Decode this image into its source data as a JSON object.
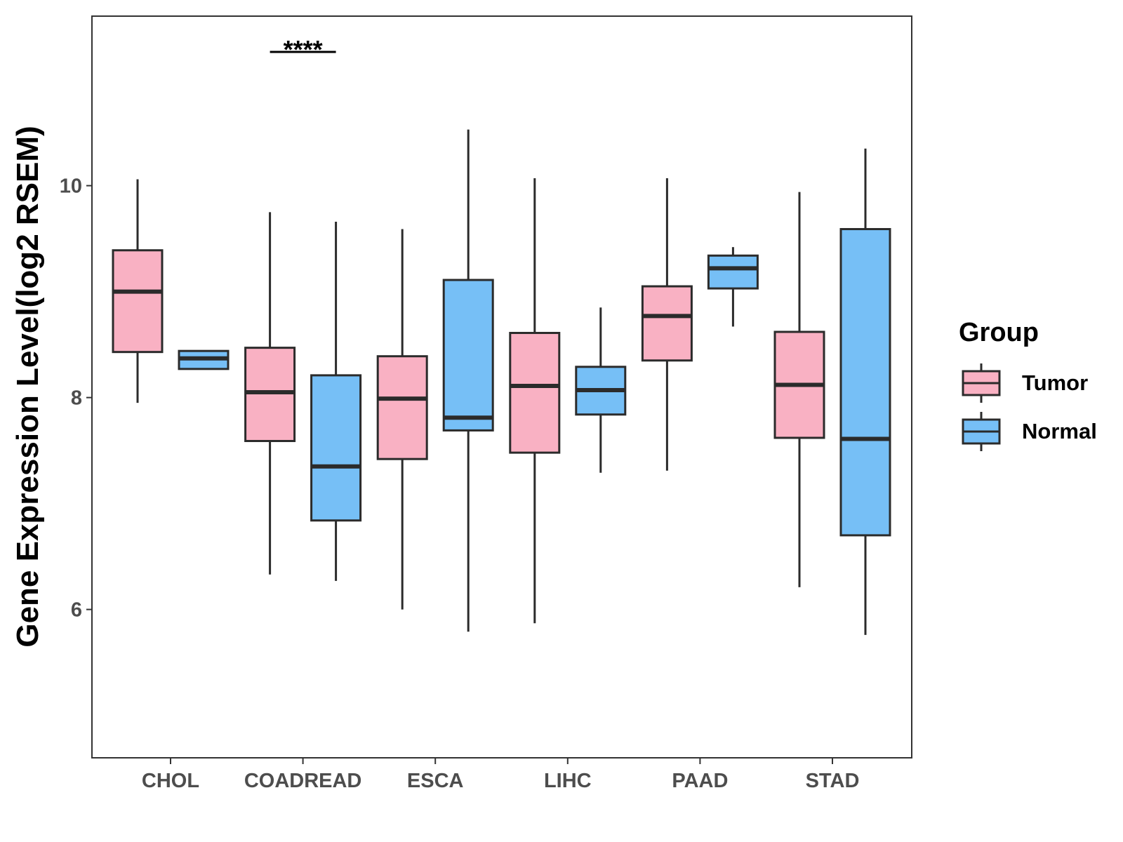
{
  "chart_data": {
    "type": "boxplot",
    "title": "",
    "xlabel": "",
    "ylabel": "Gene Expression Level(log2 RSEM)",
    "ylim": [
      4.6,
      11.6
    ],
    "yticks": [
      6,
      8,
      10
    ],
    "grid": false,
    "legend_position": "right",
    "legend": {
      "title": "Group",
      "items": [
        {
          "name": "Tumor",
          "color": "#F9B1C3"
        },
        {
          "name": "Normal",
          "color": "#76BFF6"
        }
      ]
    },
    "categories": [
      "CHOL",
      "COADREAD",
      "ESCA",
      "LIHC",
      "PAAD",
      "STAD"
    ],
    "series": [
      {
        "name": "Tumor",
        "color": "#F9B1C3",
        "boxes": [
          {
            "category": "CHOL",
            "whisker_low": 7.95,
            "q1": 8.43,
            "median": 9.0,
            "q3": 9.39,
            "whisker_high": 10.06
          },
          {
            "category": "COADREAD",
            "whisker_low": 6.33,
            "q1": 7.59,
            "median": 8.05,
            "q3": 8.47,
            "whisker_high": 9.75
          },
          {
            "category": "ESCA",
            "whisker_low": 6.0,
            "q1": 7.42,
            "median": 7.99,
            "q3": 8.39,
            "whisker_high": 9.59
          },
          {
            "category": "LIHC",
            "whisker_low": 5.87,
            "q1": 7.48,
            "median": 8.11,
            "q3": 8.61,
            "whisker_high": 10.07
          },
          {
            "category": "PAAD",
            "whisker_low": 7.31,
            "q1": 8.35,
            "median": 8.77,
            "q3": 9.05,
            "whisker_high": 10.07
          },
          {
            "category": "STAD",
            "whisker_low": 6.21,
            "q1": 7.62,
            "median": 8.12,
            "q3": 8.62,
            "whisker_high": 9.94
          }
        ]
      },
      {
        "name": "Normal",
        "color": "#76BFF6",
        "boxes": [
          {
            "category": "CHOL",
            "whisker_low": 8.27,
            "q1": 8.27,
            "median": 8.37,
            "q3": 8.44,
            "whisker_high": 8.44
          },
          {
            "category": "COADREAD",
            "whisker_low": 6.27,
            "q1": 6.84,
            "median": 7.35,
            "q3": 8.21,
            "whisker_high": 9.66
          },
          {
            "category": "ESCA",
            "whisker_low": 5.79,
            "q1": 7.69,
            "median": 7.81,
            "q3": 9.11,
            "whisker_high": 10.53
          },
          {
            "category": "LIHC",
            "whisker_low": 7.29,
            "q1": 7.84,
            "median": 8.07,
            "q3": 8.29,
            "whisker_high": 8.85
          },
          {
            "category": "PAAD",
            "whisker_low": 8.67,
            "q1": 9.03,
            "median": 9.22,
            "q3": 9.34,
            "whisker_high": 9.42
          },
          {
            "category": "STAD",
            "whisker_low": 5.76,
            "q1": 6.7,
            "median": 7.61,
            "q3": 9.59,
            "whisker_high": 10.35
          }
        ]
      }
    ],
    "annotations": [
      {
        "category": "COADREAD",
        "text": "****"
      }
    ]
  }
}
